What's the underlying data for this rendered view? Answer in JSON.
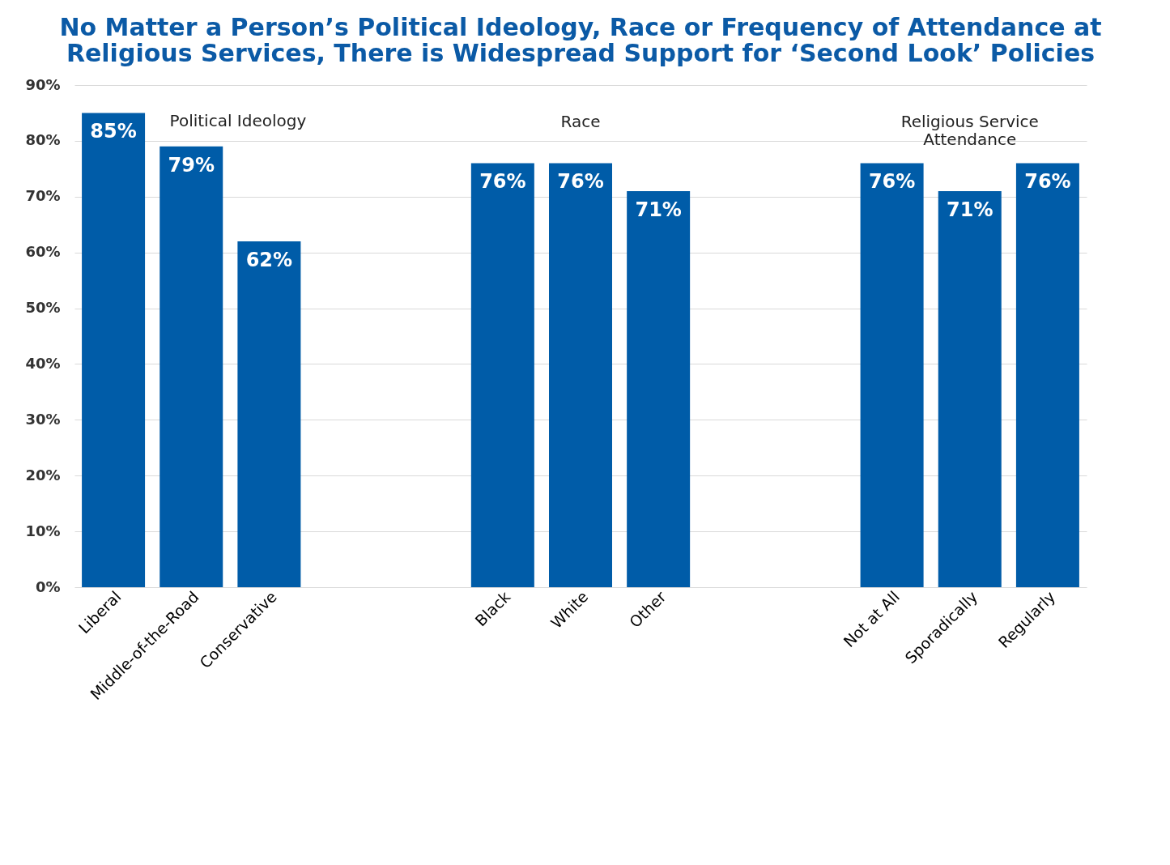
{
  "chart_data": {
    "type": "bar",
    "title": "No Matter a Person’s Political Ideology, Race or Frequency of Attendance at\nReligious Services, There is Widespread Support for ‘Second Look’ Policies",
    "categories": [
      "Liberal",
      "Middle-of-the-Road",
      "Conservative",
      null,
      null,
      "Black",
      "White",
      "Other",
      null,
      null,
      "Not at All",
      "Sporadically",
      "Regularly"
    ],
    "values": [
      85,
      79,
      62,
      null,
      null,
      76,
      76,
      71,
      null,
      null,
      76,
      71,
      76
    ],
    "value_labels": [
      "85%",
      "79%",
      "62%",
      null,
      null,
      "76%",
      "76%",
      "71%",
      null,
      null,
      "76%",
      "71%",
      "76%"
    ],
    "color": "#005ca8",
    "ylim": [
      0,
      90
    ],
    "yticks": [
      {
        "value": 0,
        "label": "0%"
      },
      {
        "value": 10,
        "label": "10%"
      },
      {
        "value": 20,
        "label": "20%"
      },
      {
        "value": 30,
        "label": "30%"
      },
      {
        "value": 40,
        "label": "40%"
      },
      {
        "value": 50,
        "label": "50%"
      },
      {
        "value": 60,
        "label": "60%"
      },
      {
        "value": 70,
        "label": "70%"
      },
      {
        "value": 80,
        "label": "80%"
      },
      {
        "value": 90,
        "label": "90%"
      }
    ],
    "annotations": [
      "Political Ideology",
      "Race",
      "Religious Service\nAttendance"
    ],
    "grid": "y"
  }
}
